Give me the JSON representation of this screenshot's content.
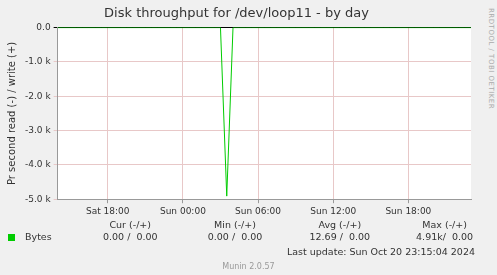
{
  "chart_data": {
    "type": "line",
    "title": "Disk throughput for /dev/loop11 - by day",
    "y_label": "Pr second read (-) / write (+)",
    "categories": [
      null,
      null,
      null,
      null,
      null,
      null,
      null,
      null,
      "Sat 18:00",
      null,
      null,
      null,
      null,
      null,
      null,
      null,
      null,
      null,
      null,
      null,
      "Sun 00:00",
      null,
      null,
      null,
      null,
      null,
      null,
      null,
      null,
      null,
      null,
      null,
      "Sun 06:00",
      null,
      null,
      null,
      null,
      null,
      null,
      null,
      null,
      null,
      null,
      null,
      "Sun 12:00",
      null,
      null,
      null,
      null,
      null,
      null,
      null,
      null,
      null,
      null,
      null,
      "Sun 18:00",
      null,
      null,
      null,
      null,
      null,
      null,
      null,
      null,
      null,
      null
    ],
    "series": [
      {
        "name": "Bytes",
        "color": "#00cc00",
        "values": [
          0,
          0,
          0,
          0,
          0,
          0,
          0,
          0,
          0,
          0,
          0,
          0,
          0,
          0,
          0,
          0,
          0,
          0,
          0,
          0,
          0,
          0,
          0,
          0,
          0,
          0,
          0,
          -4910,
          0,
          0,
          0,
          0,
          0,
          0,
          0,
          0,
          0,
          0,
          0,
          0,
          0,
          0,
          0,
          0,
          0,
          0,
          0,
          0,
          0,
          0,
          0,
          0,
          0,
          0,
          0,
          0,
          0,
          0,
          0,
          0,
          0,
          0,
          0,
          0,
          0,
          0,
          0
        ]
      }
    ],
    "ylim": [
      -5000,
      0
    ],
    "yticks": [
      {
        "value": 0,
        "label": "0.0"
      },
      {
        "value": -1000,
        "label": "-1.0 k"
      },
      {
        "value": -2000,
        "label": "-2.0 k"
      },
      {
        "value": -3000,
        "label": "-3.0 k"
      },
      {
        "value": -4000,
        "label": "-4.0 k"
      },
      {
        "value": -5000,
        "label": "-5.0 k"
      }
    ],
    "grid": true
  },
  "legend_table": {
    "headers": [
      "Cur (-/+)",
      "Min (-/+)",
      "Avg (-/+)",
      "Max (-/+)"
    ],
    "rows": [
      [
        "0.00 /  0.00",
        "0.00 /  0.00",
        "12.69 /  0.00",
        "4.91k/  0.00"
      ]
    ]
  },
  "footer": {
    "last_update": "Last update: Sun Oct 20 23:15:04 2024",
    "version": "Munin 2.0.57"
  },
  "side_text": "RRDTOOL / TOBI OETIKER"
}
